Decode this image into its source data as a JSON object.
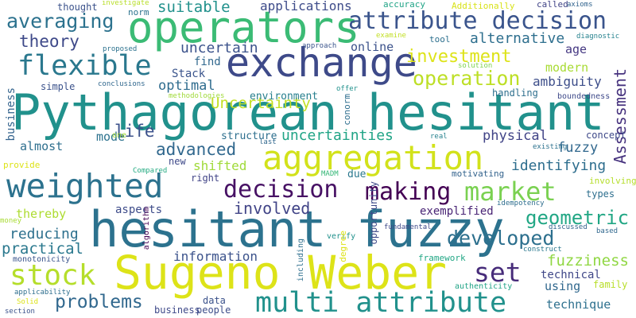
{
  "cloud": {
    "words": [
      {
        "text": "Pythagorean hesitant",
        "color": "#21918c"
      },
      {
        "text": "hesitant fuzzy",
        "color": "#2c728e"
      },
      {
        "text": "Sugeno Weber",
        "color": "#dde318"
      },
      {
        "text": "operators",
        "color": "#3bbb75"
      },
      {
        "text": "exchange",
        "color": "#3e4a89"
      },
      {
        "text": "aggregation",
        "color": "#d2e21b"
      },
      {
        "text": "multi attribute",
        "color": "#21918c"
      },
      {
        "text": "weighted",
        "color": "#2c728e"
      },
      {
        "text": "attribute decision",
        "color": "#3a548c"
      },
      {
        "text": "flexible",
        "color": "#2a788e"
      },
      {
        "text": "market",
        "color": "#7ad151"
      },
      {
        "text": "decision",
        "color": "#471164"
      },
      {
        "text": "making",
        "color": "#440154"
      },
      {
        "text": "stock",
        "color": "#b5de2b"
      },
      {
        "text": "set",
        "color": "#472c7a"
      },
      {
        "text": "developed",
        "color": "#2d708e"
      },
      {
        "text": "averaging",
        "color": "#2c728e"
      },
      {
        "text": "operation",
        "color": "#bddf26"
      },
      {
        "text": "investment",
        "color": "#dde318"
      },
      {
        "text": "geometric",
        "color": "#22a785"
      },
      {
        "text": "problems",
        "color": "#31688e"
      },
      {
        "text": "theory",
        "color": "#3e4989"
      },
      {
        "text": "advanced",
        "color": "#31688e"
      },
      {
        "text": "uncertainties",
        "color": "#20a486"
      },
      {
        "text": "involved",
        "color": "#414487"
      },
      {
        "text": "life",
        "color": "#3b518b"
      },
      {
        "text": "Assessment",
        "color": "#46327e"
      },
      {
        "text": "information",
        "color": "#3b528b"
      },
      {
        "text": "practical",
        "color": "#2a788e"
      },
      {
        "text": "reducing",
        "color": "#2d708e"
      },
      {
        "text": "fuzziness",
        "color": "#90d743"
      },
      {
        "text": "identifying",
        "color": "#2e6e8e"
      },
      {
        "text": "suitable",
        "color": "#21918c"
      },
      {
        "text": "alternative",
        "color": "#2e6f8e"
      },
      {
        "text": "Uncertainty",
        "color": "#c2df23"
      },
      {
        "text": "optimal",
        "color": "#2f6c8e"
      },
      {
        "text": "uncertain",
        "color": "#3b528b"
      },
      {
        "text": "applications",
        "color": "#3e4c8a"
      },
      {
        "text": "ambiguity",
        "color": "#3d4e8a"
      },
      {
        "text": "online",
        "color": "#3b528b"
      },
      {
        "text": "modern",
        "color": "#a8db34"
      },
      {
        "text": "age",
        "color": "#453882"
      },
      {
        "text": "Stack",
        "color": "#3a548c"
      },
      {
        "text": "find",
        "color": "#31688e"
      },
      {
        "text": "environment",
        "color": "#277f8e"
      },
      {
        "text": "structure",
        "color": "#2e6f8e"
      },
      {
        "text": "physical",
        "color": "#414487"
      },
      {
        "text": "fuzzy",
        "color": "#31688e"
      },
      {
        "text": "exemplified",
        "color": "#482374"
      },
      {
        "text": "technical",
        "color": "#3f4788"
      },
      {
        "text": "technique",
        "color": "#2d708e"
      },
      {
        "text": "aspects",
        "color": "#3e4c8a"
      },
      {
        "text": "almost",
        "color": "#2e6f8e"
      },
      {
        "text": "mode",
        "color": "#2c728e"
      },
      {
        "text": "thereby",
        "color": "#addc30"
      },
      {
        "text": "new",
        "color": "#3e4989"
      },
      {
        "text": "shifted",
        "color": "#a0da39"
      },
      {
        "text": "using",
        "color": "#31688e"
      },
      {
        "text": "concept",
        "color": "#3e4989"
      },
      {
        "text": "data",
        "color": "#3b528b"
      },
      {
        "text": "people",
        "color": "#3d4e8a"
      },
      {
        "text": "business",
        "color": "#33638d"
      },
      {
        "text": "right",
        "color": "#414487"
      },
      {
        "text": "due",
        "color": "#2a788e"
      },
      {
        "text": "types",
        "color": "#2e6f8e"
      },
      {
        "text": "family",
        "color": "#b8de29"
      },
      {
        "text": "opportunity",
        "color": "#3e4a89"
      },
      {
        "text": "thought",
        "color": "#3b528b"
      },
      {
        "text": "norm",
        "color": "#2c728e"
      },
      {
        "text": "accuracy",
        "color": "#20a486"
      },
      {
        "text": "called",
        "color": "#414487"
      },
      {
        "text": "axioms",
        "color": "#32648e"
      },
      {
        "text": "diagnostic",
        "color": "#26828e"
      },
      {
        "text": "proposed",
        "color": "#2c728e"
      },
      {
        "text": "approach",
        "color": "#3a548c"
      },
      {
        "text": "tool",
        "color": "#2d708e"
      },
      {
        "text": "examine",
        "color": "#c2df23"
      },
      {
        "text": "solution",
        "color": "#7fd34e"
      },
      {
        "text": "simple",
        "color": "#3b528b"
      },
      {
        "text": "conclusions",
        "color": "#31688e"
      },
      {
        "text": "offer",
        "color": "#21918c"
      },
      {
        "text": "handling",
        "color": "#2e6f8e"
      },
      {
        "text": "boundedness",
        "color": "#3e4989"
      },
      {
        "text": "conorm",
        "color": "#2e6e8e"
      },
      {
        "text": "last",
        "color": "#31688e"
      },
      {
        "text": "real",
        "color": "#26828e"
      },
      {
        "text": "one",
        "color": "#a2da37"
      },
      {
        "text": "provide",
        "color": "#dde318"
      },
      {
        "text": "Compared",
        "color": "#25ab82"
      },
      {
        "text": "MADM",
        "color": "#37b878"
      },
      {
        "text": "motivating",
        "color": "#33638d"
      },
      {
        "text": "existing",
        "color": "#2c728e"
      },
      {
        "text": "involving",
        "color": "#b5de2b"
      },
      {
        "text": "idempotency",
        "color": "#2e6e8e"
      },
      {
        "text": "fundamental",
        "color": "#3e4989"
      },
      {
        "text": "discussed",
        "color": "#33638d"
      },
      {
        "text": "based",
        "color": "#31688e"
      },
      {
        "text": "verify",
        "color": "#21918c"
      },
      {
        "text": "framework",
        "color": "#22a785"
      },
      {
        "text": "construct",
        "color": "#2a788e"
      },
      {
        "text": "monotonicity",
        "color": "#3a548c"
      },
      {
        "text": "money",
        "color": "#a8db34"
      },
      {
        "text": "algorithm",
        "color": "#440154"
      },
      {
        "text": "degree",
        "color": "#dde318"
      },
      {
        "text": "including",
        "color": "#2e6f8e"
      },
      {
        "text": "authenticity",
        "color": "#20a486"
      },
      {
        "text": "applicability",
        "color": "#2e6e8e"
      },
      {
        "text": "Solid",
        "color": "#dde318"
      },
      {
        "text": "section",
        "color": "#3b528b"
      },
      {
        "text": "investigate",
        "color": "#b8de29"
      },
      {
        "text": "Additionally",
        "color": "#d8e219"
      },
      {
        "text": "methodologies",
        "color": "#a0da39"
      },
      {
        "text": "business",
        "color": "#3e4989"
      }
    ]
  }
}
